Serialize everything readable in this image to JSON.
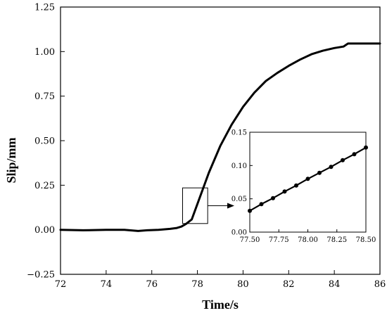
{
  "chart_data": [
    {
      "type": "line",
      "title": "",
      "xlabel": "Time/s",
      "ylabel": "Slip/mm",
      "xlim": [
        72,
        86
      ],
      "ylim": [
        -0.25,
        1.25
      ],
      "x_ticks": [
        72,
        74,
        76,
        78,
        80,
        82,
        84,
        86
      ],
      "x_tick_labels": [
        "72",
        "74",
        "76",
        "78",
        "80",
        "82",
        "84",
        "86"
      ],
      "y_ticks": [
        -0.25,
        0,
        0.25,
        0.5,
        0.75,
        1.0,
        1.25
      ],
      "y_tick_labels": [
        "−0.25",
        "0.00",
        "0.25",
        "0.50",
        "0.75",
        "1.00",
        "1.25"
      ],
      "grid": false,
      "series": [
        {
          "x": [
            72.0,
            73.0,
            74.0,
            74.8,
            75.4,
            75.8,
            76.3,
            76.8,
            77.1,
            77.3,
            77.5,
            77.75,
            78.0,
            78.5,
            79.0,
            79.5,
            80.0,
            80.5,
            81.0,
            81.5,
            82.0,
            82.5,
            83.0,
            83.5,
            84.0,
            84.4,
            84.6,
            85.0,
            85.5,
            86.0
          ],
          "y": [
            0.0,
            -0.003,
            0.0,
            0.0,
            -0.007,
            -0.003,
            0.0,
            0.005,
            0.01,
            0.018,
            0.033,
            0.058,
            0.145,
            0.32,
            0.47,
            0.59,
            0.69,
            0.77,
            0.835,
            0.88,
            0.92,
            0.955,
            0.985,
            1.005,
            1.02,
            1.028,
            1.045,
            1.045,
            1.045,
            1.045
          ]
        }
      ],
      "zoom_box": {
        "x": [
          77.35,
          78.45
        ],
        "y": [
          0.035,
          0.235
        ]
      }
    },
    {
      "type": "line",
      "title": "",
      "xlabel": "",
      "ylabel": "",
      "xlim": [
        77.5,
        78.5
      ],
      "ylim": [
        0,
        0.15
      ],
      "x_ticks": [
        77.5,
        77.75,
        78.0,
        78.25,
        78.5
      ],
      "x_tick_labels": [
        "77.50",
        "77.75",
        "78.00",
        "78.25",
        "78.50"
      ],
      "y_ticks": [
        0,
        0.05,
        0.1,
        0.15
      ],
      "y_tick_labels": [
        "0.00",
        "0.05",
        "0.10",
        "0.15"
      ],
      "grid": false,
      "series": [
        {
          "x": [
            77.5,
            77.6,
            77.7,
            77.8,
            77.9,
            78.0,
            78.1,
            78.2,
            78.3,
            78.4,
            78.5
          ],
          "y": [
            0.032,
            0.042,
            0.051,
            0.061,
            0.07,
            0.08,
            0.089,
            0.098,
            0.108,
            0.117,
            0.127
          ]
        }
      ]
    }
  ]
}
